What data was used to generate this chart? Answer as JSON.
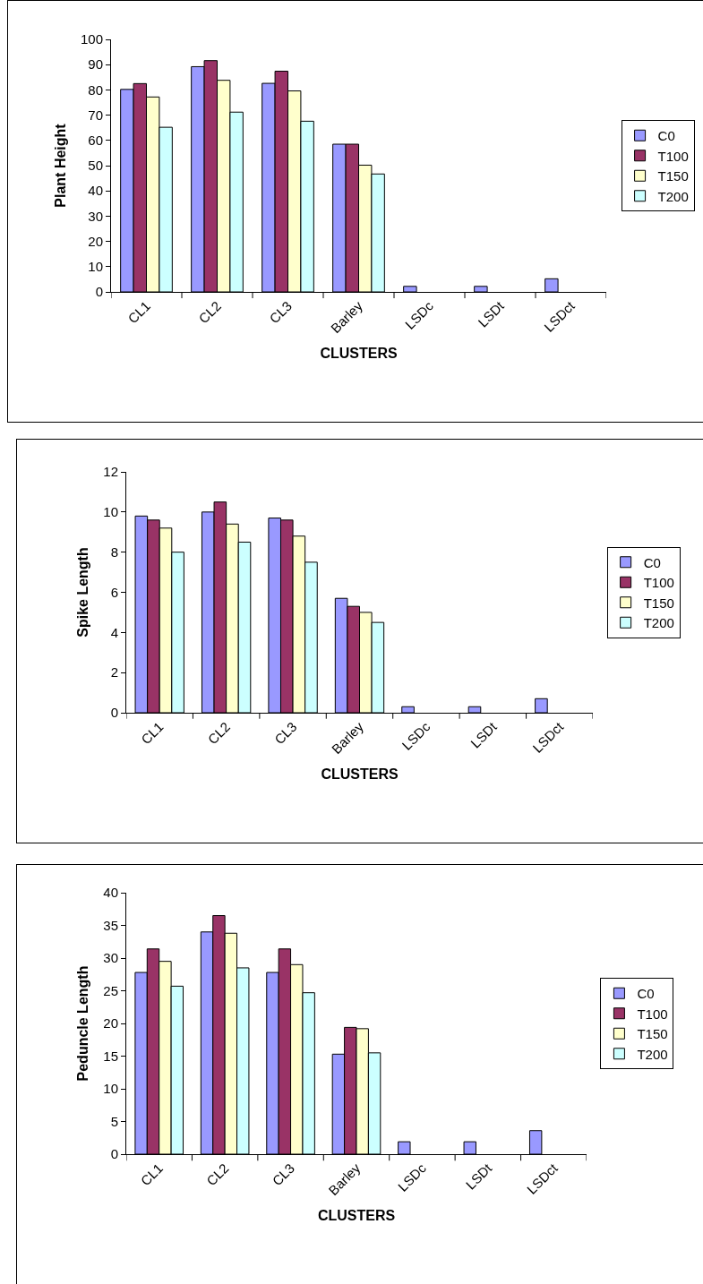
{
  "chart_data": [
    {
      "type": "bar",
      "xlabel": "CLUSTERS",
      "ylabel": "Plant Height",
      "categories": [
        "CL1",
        "CL2",
        "CL3",
        "Barley",
        "LSDc",
        "LSDt",
        "LSDct"
      ],
      "ylim": [
        0,
        100
      ],
      "yticks": [
        0,
        10,
        20,
        30,
        40,
        50,
        60,
        70,
        80,
        90,
        100
      ],
      "grid": false,
      "legend": "right",
      "series": [
        {
          "name": "C0",
          "color": "#9999ff",
          "values": [
            80.2,
            89.2,
            82.6,
            58.5,
            2.2,
            2.2,
            5.2
          ]
        },
        {
          "name": "T100",
          "color": "#993366",
          "values": [
            82.5,
            91.6,
            87.4,
            58.5,
            null,
            null,
            null
          ]
        },
        {
          "name": "T150",
          "color": "#ffffcc",
          "values": [
            77.2,
            83.8,
            79.6,
            50.2,
            null,
            null,
            null
          ]
        },
        {
          "name": "T200",
          "color": "#ccffff",
          "values": [
            65.2,
            71.2,
            67.6,
            46.7,
            null,
            null,
            null
          ]
        }
      ]
    },
    {
      "type": "bar",
      "xlabel": "CLUSTERS",
      "ylabel": "Spike Length",
      "categories": [
        "CL1",
        "CL2",
        "CL3",
        "Barley",
        "LSDc",
        "LSDt",
        "LSDct"
      ],
      "ylim": [
        0,
        12
      ],
      "yticks": [
        0,
        2,
        4,
        6,
        8,
        10,
        12
      ],
      "grid": false,
      "legend": "right",
      "series": [
        {
          "name": "C0",
          "color": "#9999ff",
          "values": [
            9.8,
            10.0,
            9.7,
            5.7,
            0.3,
            0.3,
            0.7
          ]
        },
        {
          "name": "T100",
          "color": "#993366",
          "values": [
            9.6,
            10.5,
            9.6,
            5.3,
            null,
            null,
            null
          ]
        },
        {
          "name": "T150",
          "color": "#ffffcc",
          "values": [
            9.2,
            9.4,
            8.8,
            5.0,
            null,
            null,
            null
          ]
        },
        {
          "name": "T200",
          "color": "#ccffff",
          "values": [
            8.0,
            8.5,
            7.5,
            4.5,
            null,
            null,
            null
          ]
        }
      ]
    },
    {
      "type": "bar",
      "xlabel": "CLUSTERS",
      "ylabel": "Peduncle Length",
      "categories": [
        "CL1",
        "CL2",
        "CL3",
        "Barley",
        "LSDc",
        "LSDt",
        "LSDct"
      ],
      "ylim": [
        0,
        40
      ],
      "yticks": [
        0,
        5,
        10,
        15,
        20,
        25,
        30,
        35,
        40
      ],
      "grid": false,
      "legend": "right",
      "series": [
        {
          "name": "C0",
          "color": "#9999ff",
          "values": [
            27.8,
            34.0,
            27.8,
            15.3,
            1.9,
            1.9,
            3.6
          ]
        },
        {
          "name": "T100",
          "color": "#993366",
          "values": [
            31.4,
            36.5,
            31.4,
            19.4,
            null,
            null,
            null
          ]
        },
        {
          "name": "T150",
          "color": "#ffffcc",
          "values": [
            29.5,
            33.8,
            29.0,
            19.2,
            null,
            null,
            null
          ]
        },
        {
          "name": "T200",
          "color": "#ccffff",
          "values": [
            25.7,
            28.5,
            24.7,
            15.5,
            null,
            null,
            null
          ]
        }
      ]
    }
  ]
}
